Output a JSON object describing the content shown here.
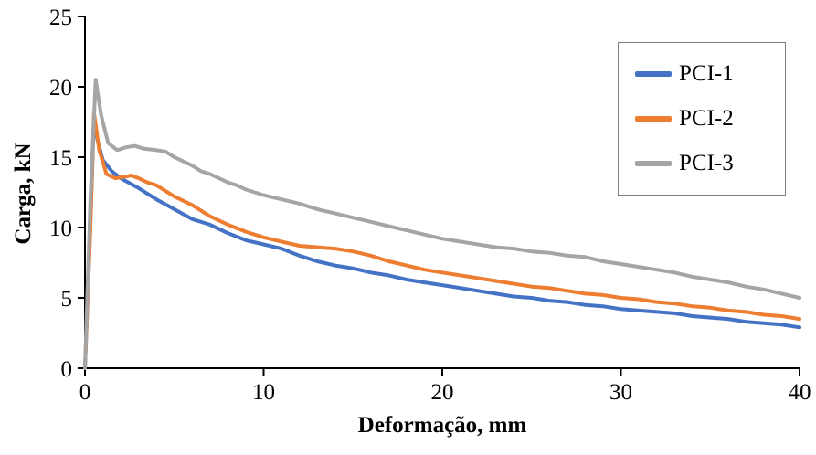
{
  "chart_data": {
    "type": "line",
    "title": "",
    "xlabel": "Deformação, mm",
    "ylabel": "Carga, kN",
    "xlim": [
      0,
      40
    ],
    "ylim": [
      0,
      25
    ],
    "xticks": [
      0,
      10,
      20,
      30,
      40
    ],
    "yticks": [
      0,
      5,
      10,
      15,
      20,
      25
    ],
    "grid": false,
    "legend_position": "top-right",
    "series": [
      {
        "name": "PCI-1",
        "color": "#4472C4",
        "points": [
          [
            0,
            0
          ],
          [
            0.3,
            10
          ],
          [
            0.5,
            17.8
          ],
          [
            0.7,
            16.2
          ],
          [
            1,
            14.8
          ],
          [
            1.5,
            14.0
          ],
          [
            2,
            13.5
          ],
          [
            3,
            12.8
          ],
          [
            4,
            12.0
          ],
          [
            5,
            11.3
          ],
          [
            6,
            10.6
          ],
          [
            7,
            10.2
          ],
          [
            8,
            9.6
          ],
          [
            9,
            9.1
          ],
          [
            10,
            8.8
          ],
          [
            11,
            8.5
          ],
          [
            12,
            8.0
          ],
          [
            13,
            7.6
          ],
          [
            14,
            7.3
          ],
          [
            15,
            7.1
          ],
          [
            16,
            6.8
          ],
          [
            17,
            6.6
          ],
          [
            18,
            6.3
          ],
          [
            19,
            6.1
          ],
          [
            20,
            5.9
          ],
          [
            21,
            5.7
          ],
          [
            22,
            5.5
          ],
          [
            23,
            5.3
          ],
          [
            24,
            5.1
          ],
          [
            25,
            5.0
          ],
          [
            26,
            4.8
          ],
          [
            27,
            4.7
          ],
          [
            28,
            4.5
          ],
          [
            29,
            4.4
          ],
          [
            30,
            4.2
          ],
          [
            31,
            4.1
          ],
          [
            32,
            4.0
          ],
          [
            33,
            3.9
          ],
          [
            34,
            3.7
          ],
          [
            35,
            3.6
          ],
          [
            36,
            3.5
          ],
          [
            37,
            3.3
          ],
          [
            38,
            3.2
          ],
          [
            39,
            3.1
          ],
          [
            40,
            2.9
          ]
        ]
      },
      {
        "name": "PCI-2",
        "color": "#ED7D31",
        "points": [
          [
            0,
            0
          ],
          [
            0.3,
            10
          ],
          [
            0.5,
            18.2
          ],
          [
            0.8,
            15.5
          ],
          [
            1.2,
            13.8
          ],
          [
            1.7,
            13.5
          ],
          [
            2.2,
            13.6
          ],
          [
            2.6,
            13.7
          ],
          [
            3,
            13.5
          ],
          [
            3.5,
            13.2
          ],
          [
            4,
            13.0
          ],
          [
            5,
            12.2
          ],
          [
            6,
            11.6
          ],
          [
            7,
            10.8
          ],
          [
            8,
            10.2
          ],
          [
            9,
            9.7
          ],
          [
            10,
            9.3
          ],
          [
            11,
            9.0
          ],
          [
            12,
            8.7
          ],
          [
            13,
            8.6
          ],
          [
            14,
            8.5
          ],
          [
            15,
            8.3
          ],
          [
            16,
            8.0
          ],
          [
            17,
            7.6
          ],
          [
            18,
            7.3
          ],
          [
            19,
            7.0
          ],
          [
            20,
            6.8
          ],
          [
            21,
            6.6
          ],
          [
            22,
            6.4
          ],
          [
            23,
            6.2
          ],
          [
            24,
            6.0
          ],
          [
            25,
            5.8
          ],
          [
            26,
            5.7
          ],
          [
            27,
            5.5
          ],
          [
            28,
            5.3
          ],
          [
            29,
            5.2
          ],
          [
            30,
            5.0
          ],
          [
            31,
            4.9
          ],
          [
            32,
            4.7
          ],
          [
            33,
            4.6
          ],
          [
            34,
            4.4
          ],
          [
            35,
            4.3
          ],
          [
            36,
            4.1
          ],
          [
            37,
            4.0
          ],
          [
            38,
            3.8
          ],
          [
            39,
            3.7
          ],
          [
            40,
            3.5
          ]
        ]
      },
      {
        "name": "PCI-3",
        "color": "#A5A5A5",
        "points": [
          [
            0,
            0
          ],
          [
            0.3,
            12
          ],
          [
            0.6,
            20.5
          ],
          [
            0.9,
            18.0
          ],
          [
            1.3,
            16.0
          ],
          [
            1.8,
            15.5
          ],
          [
            2.3,
            15.7
          ],
          [
            2.8,
            15.8
          ],
          [
            3.3,
            15.6
          ],
          [
            4,
            15.5
          ],
          [
            4.5,
            15.4
          ],
          [
            5,
            15.0
          ],
          [
            5.5,
            14.7
          ],
          [
            6,
            14.4
          ],
          [
            6.5,
            14.0
          ],
          [
            7,
            13.8
          ],
          [
            7.5,
            13.5
          ],
          [
            8,
            13.2
          ],
          [
            8.5,
            13.0
          ],
          [
            9,
            12.7
          ],
          [
            9.5,
            12.5
          ],
          [
            10,
            12.3
          ],
          [
            11,
            12.0
          ],
          [
            12,
            11.7
          ],
          [
            13,
            11.3
          ],
          [
            14,
            11.0
          ],
          [
            15,
            10.7
          ],
          [
            16,
            10.4
          ],
          [
            17,
            10.1
          ],
          [
            18,
            9.8
          ],
          [
            19,
            9.5
          ],
          [
            20,
            9.2
          ],
          [
            21,
            9.0
          ],
          [
            22,
            8.8
          ],
          [
            23,
            8.6
          ],
          [
            24,
            8.5
          ],
          [
            25,
            8.3
          ],
          [
            26,
            8.2
          ],
          [
            27,
            8.0
          ],
          [
            28,
            7.9
          ],
          [
            29,
            7.6
          ],
          [
            30,
            7.4
          ],
          [
            31,
            7.2
          ],
          [
            32,
            7.0
          ],
          [
            33,
            6.8
          ],
          [
            34,
            6.5
          ],
          [
            35,
            6.3
          ],
          [
            36,
            6.1
          ],
          [
            37,
            5.8
          ],
          [
            38,
            5.6
          ],
          [
            39,
            5.3
          ],
          [
            40,
            5.0
          ]
        ]
      }
    ]
  }
}
